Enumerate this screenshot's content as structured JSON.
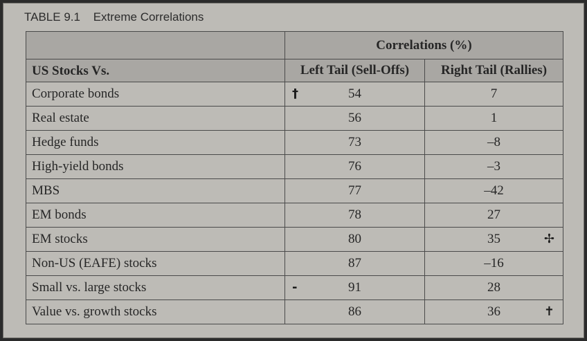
{
  "caption": {
    "number": "TABLE 9.1",
    "title": "Extreme Correlations"
  },
  "table": {
    "group_header": "Correlations (%)",
    "row_header": "US Stocks Vs.",
    "col_left": "Left Tail (Sell-Offs)",
    "col_right": "Right Tail (Rallies)",
    "rows": [
      {
        "label": "Corporate bonds",
        "left": "54",
        "right": "7",
        "left_mark": "†",
        "right_mark": ""
      },
      {
        "label": "Real estate",
        "left": "56",
        "right": "1",
        "left_mark": "",
        "right_mark": ""
      },
      {
        "label": "Hedge funds",
        "left": "73",
        "right": "–8",
        "left_mark": "",
        "right_mark": ""
      },
      {
        "label": "High-yield bonds",
        "left": "76",
        "right": "–3",
        "left_mark": "",
        "right_mark": ""
      },
      {
        "label": "MBS",
        "left": "77",
        "right": "–42",
        "left_mark": "",
        "right_mark": ""
      },
      {
        "label": "EM bonds",
        "left": "78",
        "right": "27",
        "left_mark": "",
        "right_mark": ""
      },
      {
        "label": "EM stocks",
        "left": "80",
        "right": "35",
        "left_mark": "",
        "right_mark": "✢"
      },
      {
        "label": "Non-US (EAFE) stocks",
        "left": "87",
        "right": "–16",
        "left_mark": "",
        "right_mark": ""
      },
      {
        "label": "Small vs. large stocks",
        "left": "91",
        "right": "28",
        "left_mark": "-",
        "right_mark": ""
      },
      {
        "label": "Value vs. growth stocks",
        "left": "86",
        "right": "36",
        "left_mark": "",
        "right_mark": "✝"
      }
    ]
  }
}
